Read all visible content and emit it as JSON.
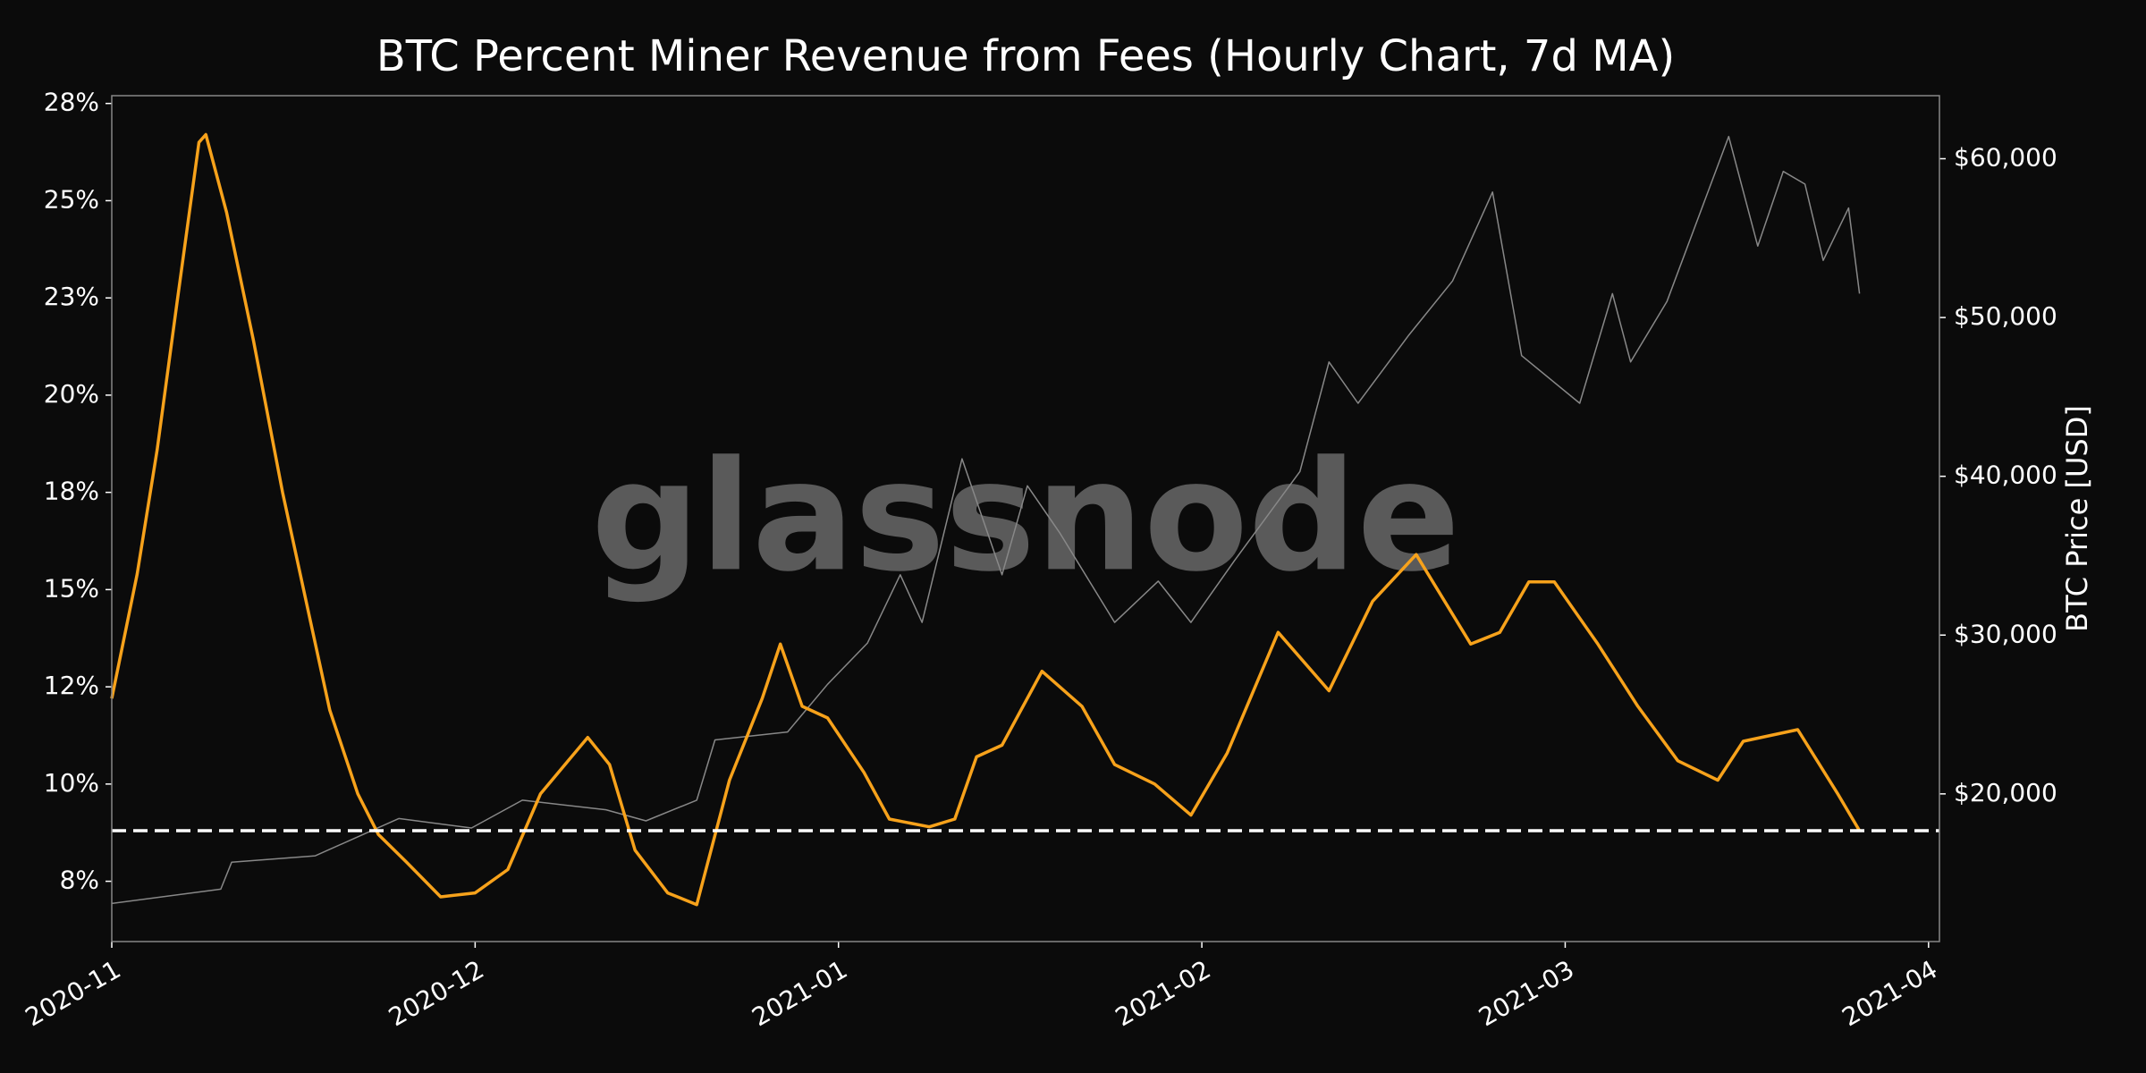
{
  "chart_data": {
    "type": "line",
    "title": "BTC Percent Miner Revenue from Fees (Hourly Chart, 7d MA)",
    "y2label": "BTC Price [USD]",
    "watermark": "glassnode",
    "xlim": [
      0,
      5.03
    ],
    "xticks": [
      {
        "value": 0,
        "label": "2020-11"
      },
      {
        "value": 1,
        "label": "2020-12"
      },
      {
        "value": 2,
        "label": "2021-01"
      },
      {
        "value": 3,
        "label": "2021-02"
      },
      {
        "value": 4,
        "label": "2021-03"
      },
      {
        "value": 5,
        "label": "2021-04"
      }
    ],
    "ylim": [
      5.95,
      27.7
    ],
    "yticks": [
      {
        "value": 7.5,
        "label": "8%"
      },
      {
        "value": 10,
        "label": "10%"
      },
      {
        "value": 12.5,
        "label": "12%"
      },
      {
        "value": 15,
        "label": "15%"
      },
      {
        "value": 17.5,
        "label": "18%"
      },
      {
        "value": 20,
        "label": "20%"
      },
      {
        "value": 22.5,
        "label": "23%"
      },
      {
        "value": 25,
        "label": "25%"
      },
      {
        "value": 27.5,
        "label": "28%"
      }
    ],
    "y2lim": [
      10700,
      63970
    ],
    "y2ticks": [
      {
        "value": 20000,
        "label": "$20,000"
      },
      {
        "value": 30000,
        "label": "$30,000"
      },
      {
        "value": 40000,
        "label": "$40,000"
      },
      {
        "value": 50000,
        "label": "$50,000"
      },
      {
        "value": 60000,
        "label": "$60,000"
      }
    ],
    "hline": {
      "value": 8.8,
      "color": "#ffffff"
    },
    "series": [
      {
        "color": "#888888",
        "axis": "y2",
        "x": [
          0,
          0.3,
          0.33,
          0.56,
          0.79,
          0.99,
          1.13,
          1.36,
          1.47,
          1.61,
          1.66,
          1.86,
          1.97,
          2.08,
          2.17,
          2.23,
          2.34,
          2.45,
          2.52,
          2.61,
          2.76,
          2.88,
          2.97,
          3.09,
          3.27,
          3.35,
          3.43,
          3.57,
          3.69,
          3.8,
          3.88,
          4.04,
          4.13,
          4.18,
          4.28,
          4.45,
          4.53,
          4.6,
          4.66,
          4.71,
          4.78,
          4.81
        ],
        "values": [
          13100,
          14000,
          15700,
          16100,
          18450,
          17850,
          19600,
          19000,
          18300,
          19600,
          23400,
          23900,
          26900,
          29500,
          33800,
          30800,
          41100,
          33800,
          39400,
          36400,
          30800,
          33400,
          30800,
          34700,
          40300,
          47200,
          44600,
          48900,
          52300,
          57900,
          47600,
          44600,
          51500,
          47200,
          51000,
          61400,
          54500,
          59200,
          58400,
          53600,
          56900,
          51500
        ]
      },
      {
        "color": "#f7a21b",
        "axis": "y",
        "x": [
          0,
          0.07,
          0.125,
          0.18,
          0.24,
          0.259,
          0.316,
          0.39,
          0.47,
          0.544,
          0.6,
          0.677,
          0.734,
          0.81,
          0.905,
          1.0,
          1.09,
          1.18,
          1.31,
          1.37,
          1.44,
          1.53,
          1.61,
          1.7,
          1.79,
          1.84,
          1.9,
          1.97,
          2.07,
          2.14,
          2.25,
          2.32,
          2.38,
          2.45,
          2.56,
          2.67,
          2.76,
          2.87,
          2.97,
          3.07,
          3.21,
          3.35,
          3.47,
          3.59,
          3.74,
          3.82,
          3.9,
          3.97,
          4.09,
          4.2,
          4.31,
          4.42,
          4.49,
          4.64,
          4.75,
          4.81
        ],
        "values": [
          12.2,
          15.4,
          18.6,
          22.4,
          26.5,
          26.7,
          24.7,
          21.4,
          17.5,
          14.3,
          11.9,
          9.75,
          8.7,
          8.0,
          7.1,
          7.2,
          7.8,
          9.75,
          11.2,
          10.5,
          8.3,
          7.2,
          6.9,
          10.1,
          12.2,
          13.6,
          12.0,
          11.7,
          10.3,
          9.1,
          8.9,
          9.1,
          10.7,
          11.0,
          12.9,
          12.0,
          10.5,
          10.0,
          9.2,
          10.8,
          13.9,
          12.4,
          14.7,
          15.9,
          13.6,
          13.9,
          15.2,
          15.2,
          13.6,
          12.0,
          10.6,
          10.1,
          11.1,
          11.4,
          9.75,
          8.8
        ]
      }
    ]
  }
}
